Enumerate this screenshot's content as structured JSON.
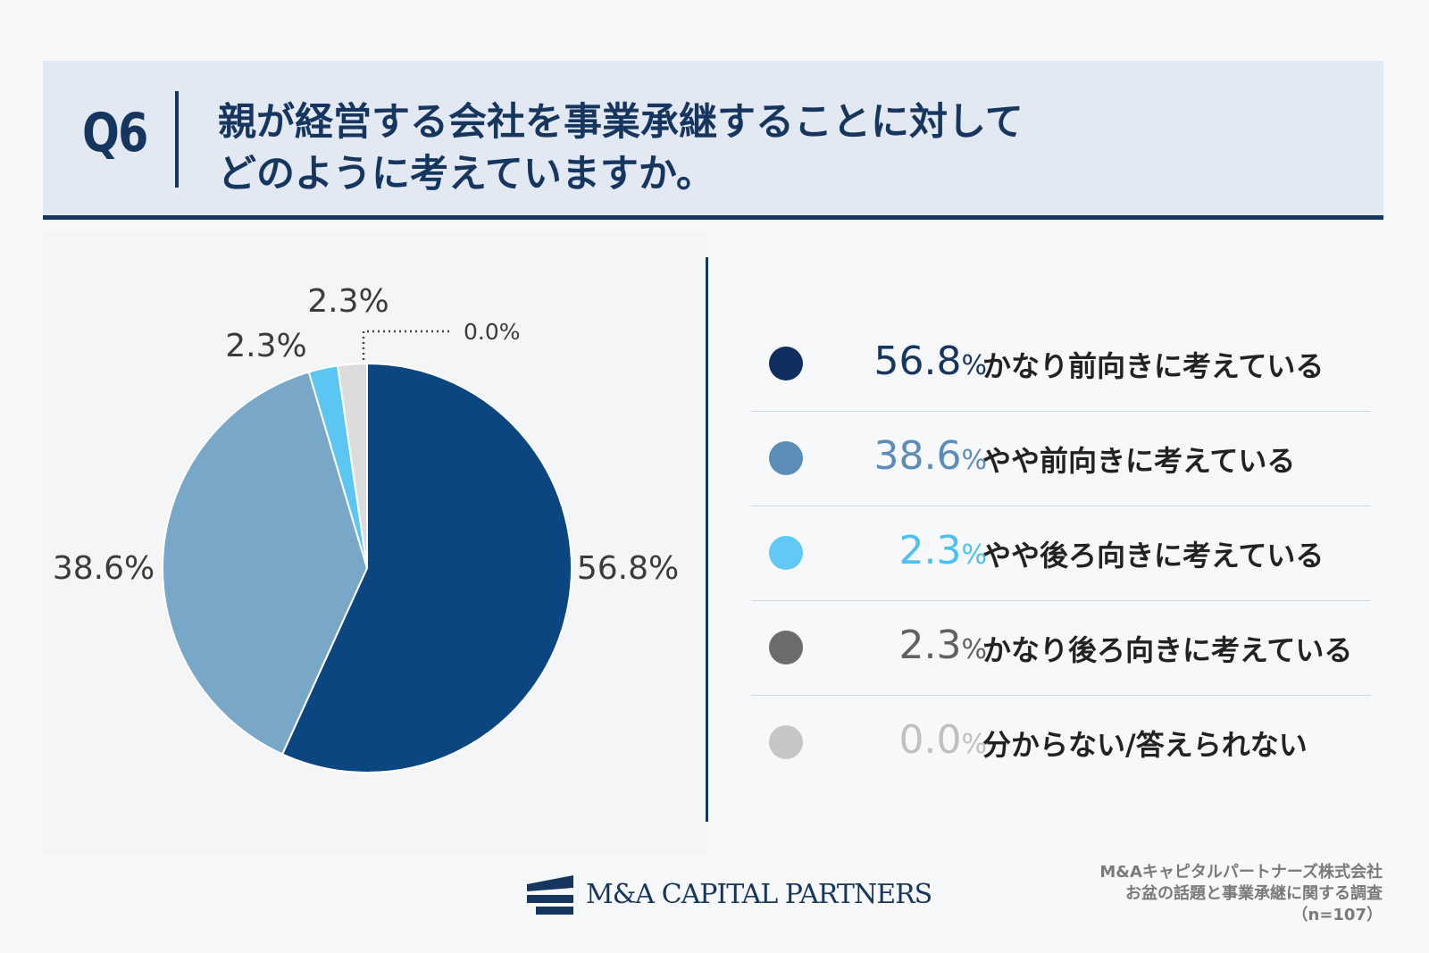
{
  "header": {
    "q_number": "Q6",
    "question_line1": "親が経営する会社を事業承継することに対して",
    "question_line2": "どのように考えていますか。"
  },
  "chart_data": {
    "type": "pie",
    "title": "",
    "slices": [
      {
        "label": "かなり前向きに考えている",
        "value": 56.8,
        "display": "56.8%",
        "color": "#0c4681"
      },
      {
        "label": "やや前向きに考えている",
        "value": 38.6,
        "display": "38.6%",
        "color": "#78a7c8"
      },
      {
        "label": "やや後ろ向きに考えている",
        "value": 2.3,
        "display": "2.3%",
        "color": "#5bc6f2"
      },
      {
        "label": "かなり後ろ向きに考えている",
        "value": 2.3,
        "display": "2.3%",
        "color": "#dcdcdc"
      },
      {
        "label": "分からない/答えられない",
        "value": 0.0,
        "display": "0.0%",
        "color": "#bfbfbf"
      }
    ]
  },
  "legend": {
    "items": [
      {
        "num": "56.8",
        "pct": "%",
        "label": "かなり前向きに考えている",
        "dot_color": "#0f2d5e",
        "num_color": "#17365f"
      },
      {
        "num": "38.6",
        "pct": "%",
        "label": "やや前向きに考えている",
        "dot_color": "#5b8db8",
        "num_color": "#5b8db8"
      },
      {
        "num": "2.3",
        "pct": "%",
        "label": "やや後ろ向きに考えている",
        "dot_color": "#61c9f6",
        "num_color": "#4fbff0"
      },
      {
        "num": "2.3",
        "pct": "%",
        "label": "かなり後ろ向きに考えている",
        "dot_color": "#6c6c6c",
        "num_color": "#616161"
      },
      {
        "num": "0.0",
        "pct": "%",
        "label": "分からない/答えられない",
        "dot_color": "#c6c6c6",
        "num_color": "#c0c0c0"
      }
    ]
  },
  "footer": {
    "logo_text": "M&A CAPITAL PARTNERS",
    "source_line1": "M&Aキャピタルパートナーズ株式会社",
    "source_line2": "お盆の話題と事業承継に関する調査",
    "source_line3": "（n=107）"
  }
}
